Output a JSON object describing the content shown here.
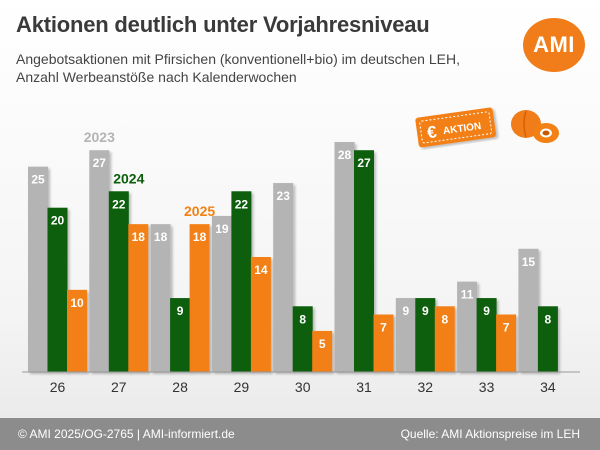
{
  "header": {
    "title": "Aktionen deutlich unter Vorjahresniveau",
    "subtitle_line1": "Angebotsaktionen mit Pfirsichen (konventionell+bio) im deutschen LEH,",
    "subtitle_line2": "Anzahl Werbeanstöße nach Kalenderwochen"
  },
  "logo": {
    "text": "AMI"
  },
  "badge": {
    "currency_symbol": "€",
    "text": "AKTION"
  },
  "footer": {
    "left": "© AMI 2025/OG-2765 | AMI-informiert.de",
    "right": "Quelle: AMI Aktionspreise im LEH"
  },
  "colors": {
    "2023": "#b4b4b4",
    "2024": "#0b5e0b",
    "2025": "#f28012",
    "accent": "#f07d1a"
  },
  "chart_data": {
    "type": "bar",
    "categories": [
      "26",
      "27",
      "28",
      "29",
      "30",
      "31",
      "32",
      "33",
      "34"
    ],
    "series": [
      {
        "name": "2023",
        "values": [
          25,
          27,
          18,
          19,
          23,
          28,
          9,
          11,
          15
        ]
      },
      {
        "name": "2024",
        "values": [
          20,
          22,
          9,
          22,
          8,
          27,
          9,
          9,
          8
        ]
      },
      {
        "name": "2025",
        "values": [
          10,
          18,
          18,
          14,
          5,
          7,
          8,
          7,
          null
        ]
      }
    ],
    "xlabel": "",
    "ylabel": "",
    "ylim": [
      0,
      28
    ],
    "grid": false,
    "legend": "inline labels above bars of week 27/28"
  }
}
